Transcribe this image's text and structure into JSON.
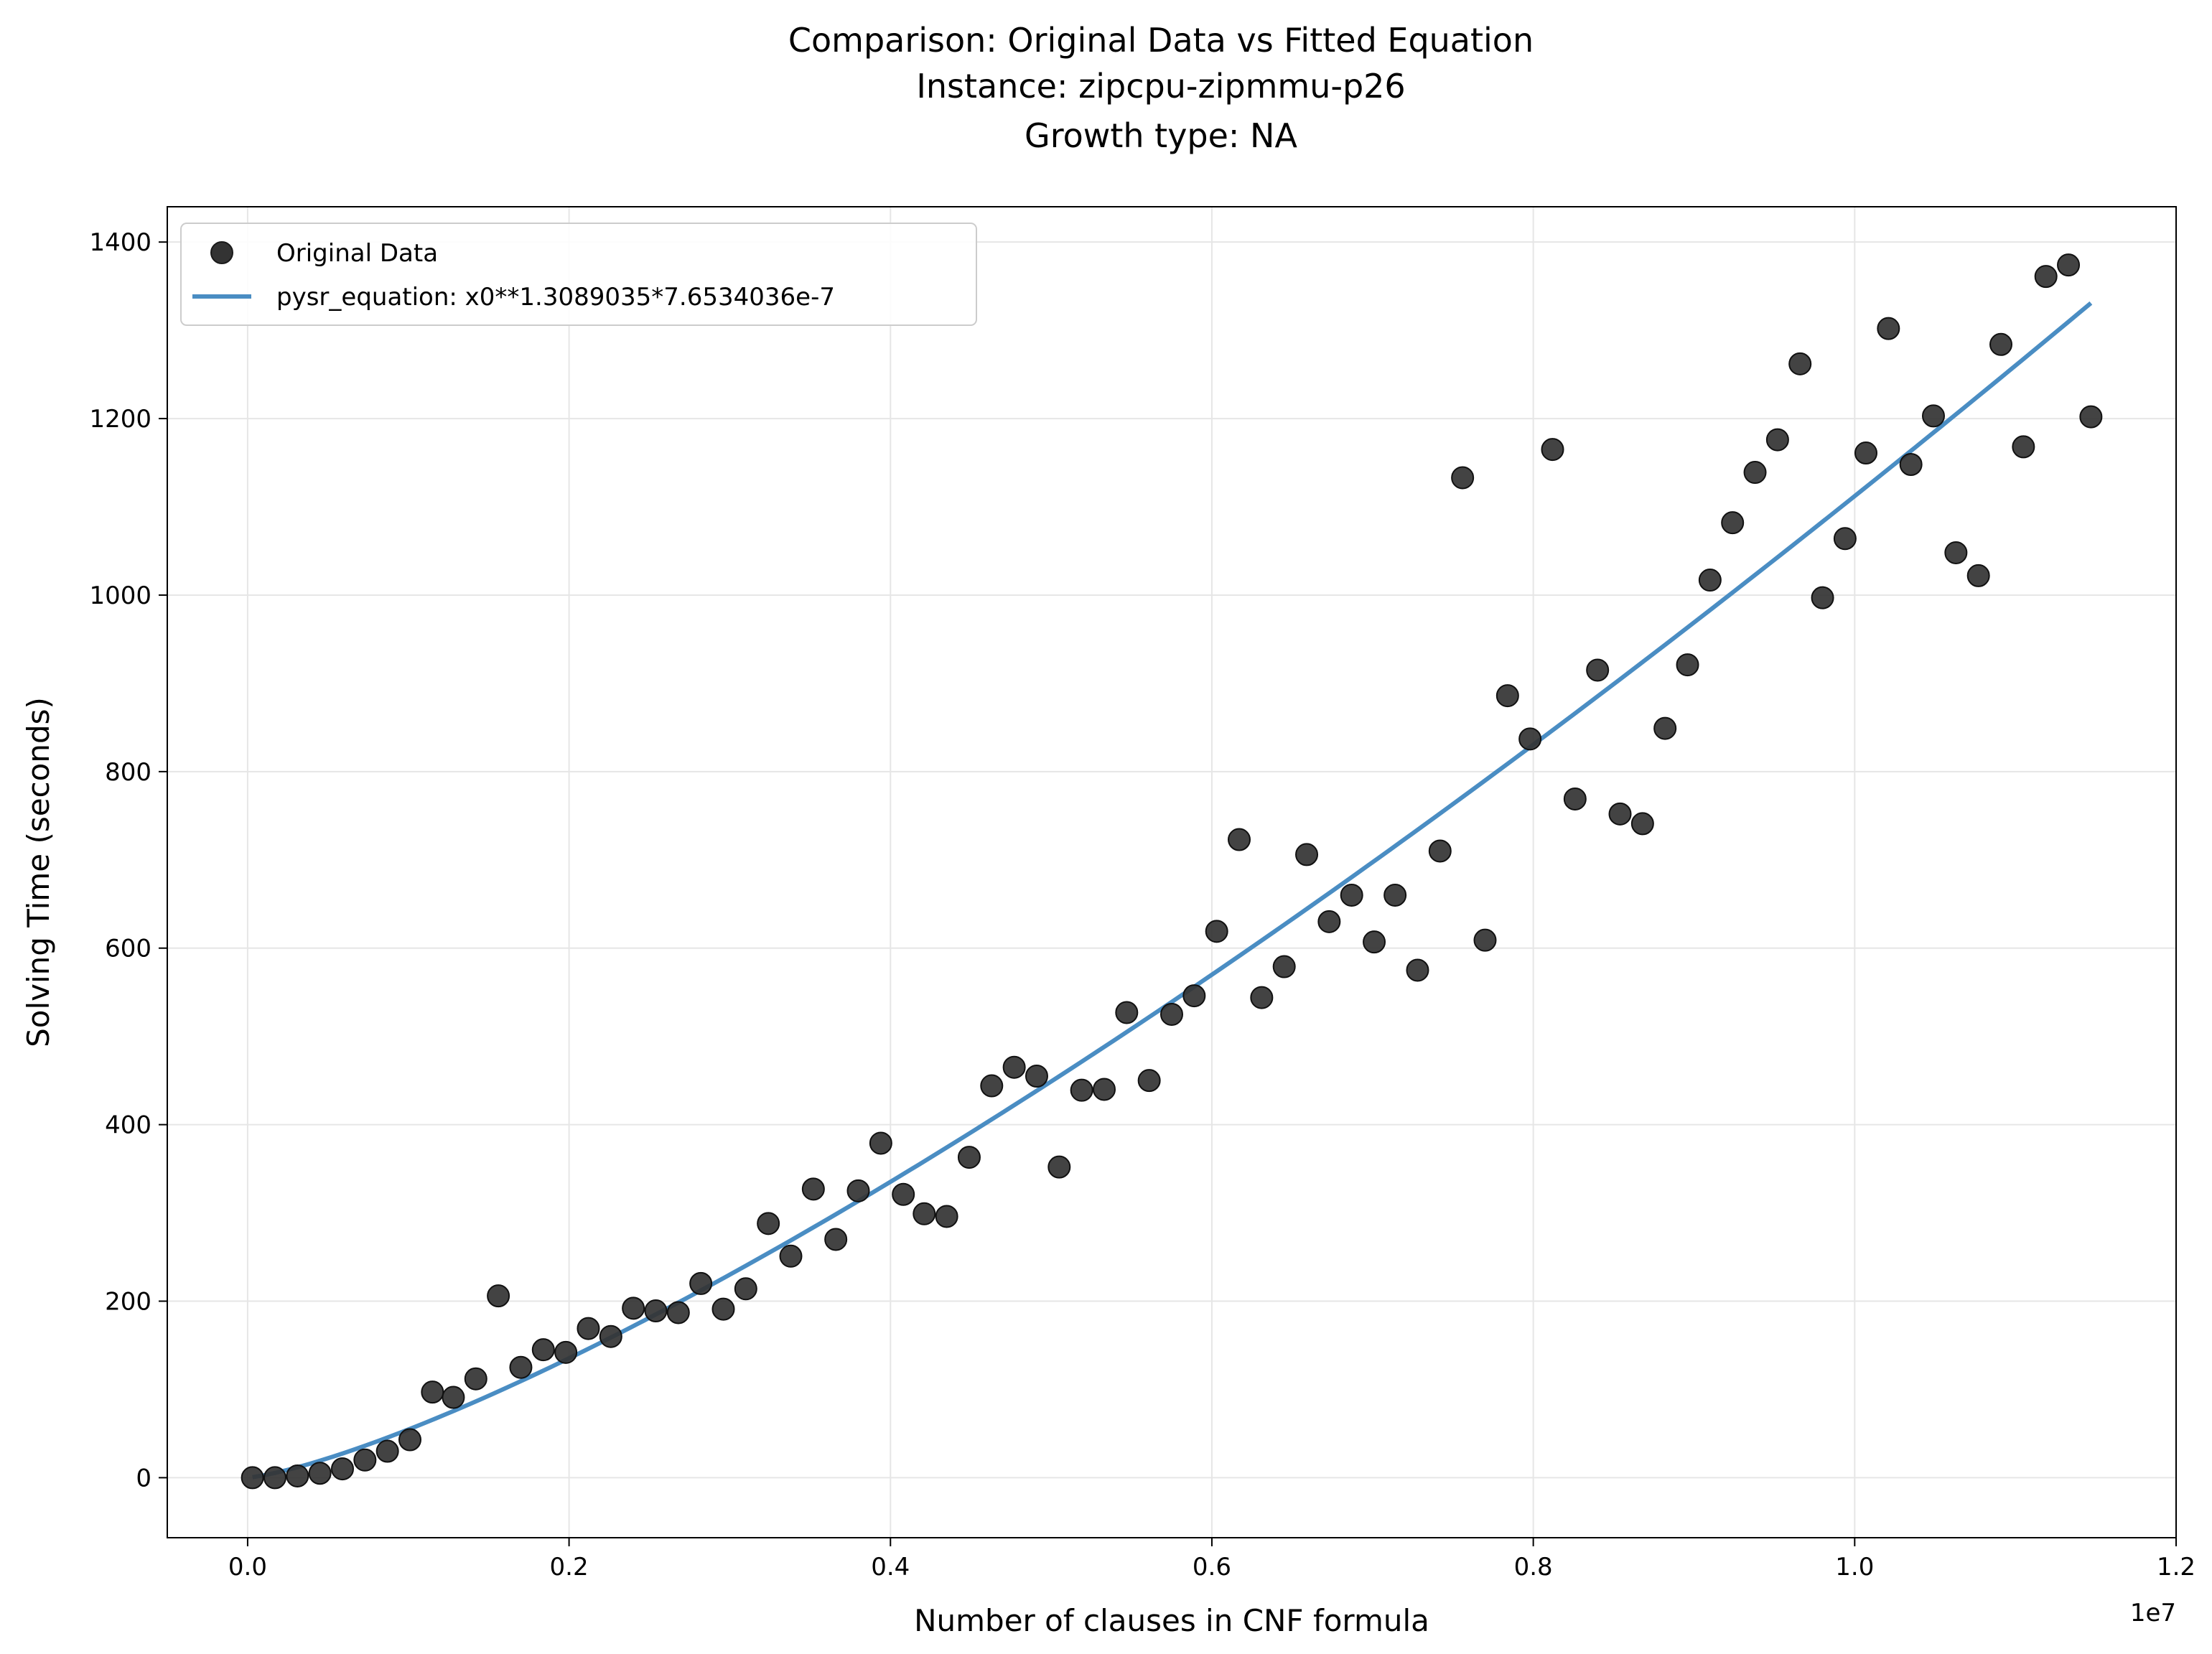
{
  "chart_data": {
    "type": "scatter",
    "title_lines": [
      "Comparison: Original Data vs Fitted Equation",
      "Instance: zipcpu-zipmmu-p26",
      "Growth type: NA"
    ],
    "xlabel": "Number of clauses in CNF formula",
    "ylabel": "Solving Time (seconds)",
    "x_offset_label": "1e7",
    "xlim": [
      -0.05,
      1.2
    ],
    "ylim": [
      -68,
      1440
    ],
    "x_scale_note": "x values shown in units of 1e7",
    "xticks": [
      {
        "value": 0.0,
        "label": "0.0"
      },
      {
        "value": 0.2,
        "label": "0.2"
      },
      {
        "value": 0.4,
        "label": "0.4"
      },
      {
        "value": 0.6,
        "label": "0.6"
      },
      {
        "value": 0.8,
        "label": "0.8"
      },
      {
        "value": 1.0,
        "label": "1.0"
      },
      {
        "value": 1.2,
        "label": "1.2"
      }
    ],
    "yticks": [
      {
        "value": 0,
        "label": "0"
      },
      {
        "value": 200,
        "label": "200"
      },
      {
        "value": 400,
        "label": "400"
      },
      {
        "value": 600,
        "label": "600"
      },
      {
        "value": 800,
        "label": "800"
      },
      {
        "value": 1000,
        "label": "1000"
      },
      {
        "value": 1200,
        "label": "1200"
      },
      {
        "value": 1400,
        "label": "1400"
      }
    ],
    "grid": true,
    "legend_position": "top-left",
    "series": [
      {
        "name": "Original Data",
        "kind": "scatter",
        "color": "#333333",
        "points": [
          [
            0.003,
            0
          ],
          [
            0.017,
            0
          ],
          [
            0.031,
            2
          ],
          [
            0.045,
            5
          ],
          [
            0.059,
            10
          ],
          [
            0.073,
            20
          ],
          [
            0.087,
            30
          ],
          [
            0.101,
            43
          ],
          [
            0.115,
            97
          ],
          [
            0.128,
            91
          ],
          [
            0.142,
            112
          ],
          [
            0.156,
            206
          ],
          [
            0.17,
            125
          ],
          [
            0.184,
            145
          ],
          [
            0.198,
            142
          ],
          [
            0.212,
            169
          ],
          [
            0.226,
            160
          ],
          [
            0.24,
            192
          ],
          [
            0.254,
            189
          ],
          [
            0.268,
            187
          ],
          [
            0.282,
            220
          ],
          [
            0.296,
            191
          ],
          [
            0.31,
            214
          ],
          [
            0.324,
            288
          ],
          [
            0.338,
            251
          ],
          [
            0.352,
            327
          ],
          [
            0.366,
            270
          ],
          [
            0.38,
            325
          ],
          [
            0.394,
            379
          ],
          [
            0.408,
            321
          ],
          [
            0.421,
            299
          ],
          [
            0.435,
            296
          ],
          [
            0.449,
            363
          ],
          [
            0.463,
            444
          ],
          [
            0.477,
            465
          ],
          [
            0.491,
            455
          ],
          [
            0.505,
            352
          ],
          [
            0.519,
            439
          ],
          [
            0.533,
            440
          ],
          [
            0.547,
            527
          ],
          [
            0.561,
            450
          ],
          [
            0.575,
            525
          ],
          [
            0.589,
            546
          ],
          [
            0.603,
            619
          ],
          [
            0.617,
            723
          ],
          [
            0.631,
            544
          ],
          [
            0.645,
            579
          ],
          [
            0.659,
            706
          ],
          [
            0.673,
            630
          ],
          [
            0.687,
            660
          ],
          [
            0.701,
            607
          ],
          [
            0.714,
            660
          ],
          [
            0.728,
            575
          ],
          [
            0.742,
            710
          ],
          [
            0.756,
            1133
          ],
          [
            0.77,
            609
          ],
          [
            0.784,
            886
          ],
          [
            0.798,
            837
          ],
          [
            0.812,
            1165
          ],
          [
            0.826,
            769
          ],
          [
            0.84,
            915
          ],
          [
            0.854,
            752
          ],
          [
            0.868,
            741
          ],
          [
            0.882,
            849
          ],
          [
            0.896,
            921
          ],
          [
            0.91,
            1017
          ],
          [
            0.924,
            1082
          ],
          [
            0.938,
            1139
          ],
          [
            0.952,
            1176
          ],
          [
            0.966,
            1262
          ],
          [
            0.98,
            997
          ],
          [
            0.994,
            1064
          ],
          [
            1.007,
            1161
          ],
          [
            1.021,
            1302
          ],
          [
            1.035,
            1148
          ],
          [
            1.049,
            1203
          ],
          [
            1.063,
            1048
          ],
          [
            1.077,
            1022
          ],
          [
            1.091,
            1284
          ],
          [
            1.105,
            1168
          ],
          [
            1.119,
            1361
          ],
          [
            1.133,
            1374
          ],
          [
            1.147,
            1202
          ]
        ]
      },
      {
        "name": "pysr_equation: x0**1.3089035*7.6534036e-7",
        "kind": "line",
        "color": "#4a8dc3",
        "formula_exponent": 1.3089035,
        "formula_coefficient": 7.6534036e-07,
        "x_range": [
          0.003,
          1.147
        ]
      }
    ]
  }
}
